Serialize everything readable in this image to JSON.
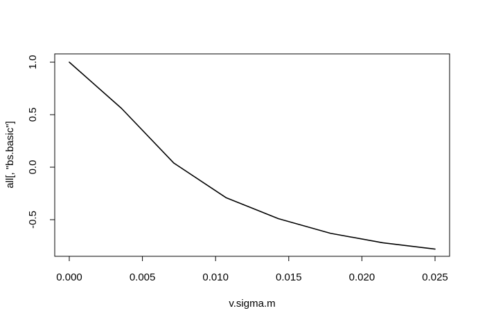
{
  "chart_data": {
    "type": "line",
    "title": "",
    "xlabel": "v.sigma.m",
    "ylabel": "all[, \"bs.basic\"]",
    "xlim": [
      0.0,
      0.025
    ],
    "ylim": [
      -0.85,
      1.05
    ],
    "x_ticks": [
      0.0,
      0.005,
      0.01,
      0.015,
      0.02,
      0.025
    ],
    "x_tick_labels": [
      "0.000",
      "0.005",
      "0.010",
      "0.015",
      "0.020",
      "0.025"
    ],
    "y_ticks": [
      -0.5,
      0.0,
      0.5,
      1.0
    ],
    "y_tick_labels": [
      "-0.5",
      "0.0",
      "0.5",
      "1.0"
    ],
    "grid": false,
    "series": [
      {
        "x": [
          0.0,
          0.00357,
          0.00714,
          0.01071,
          0.01429,
          0.01786,
          0.02143,
          0.025
        ],
        "y": [
          1.0,
          0.56,
          0.04,
          -0.29,
          -0.49,
          -0.63,
          -0.72,
          -0.78
        ],
        "color": "#000000"
      }
    ]
  }
}
